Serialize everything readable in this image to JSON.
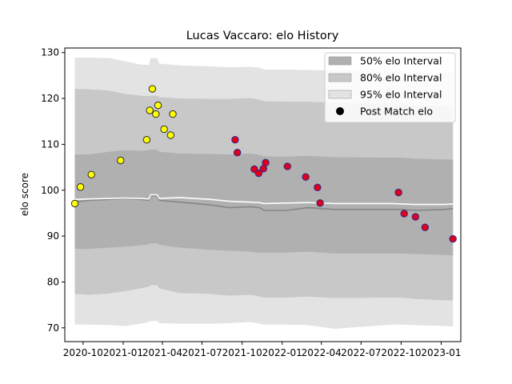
{
  "chart_data": {
    "type": "scatter",
    "title": "Lucas Vaccaro: elo History",
    "ylabel": "elo score",
    "xlabel": "",
    "ylim": [
      67,
      131
    ],
    "xlim": [
      "2020-08-20",
      "2023-02-15"
    ],
    "yticks": [
      70,
      80,
      90,
      100,
      110,
      120,
      130
    ],
    "xticks": [
      {
        "date": "2020-10-01",
        "label": "2020-10"
      },
      {
        "date": "2021-01-01",
        "label": "2021-01"
      },
      {
        "date": "2021-04-01",
        "label": "2021-04"
      },
      {
        "date": "2021-07-01",
        "label": "2021-07"
      },
      {
        "date": "2021-10-01",
        "label": "2021-10"
      },
      {
        "date": "2022-01-01",
        "label": "2022-01"
      },
      {
        "date": "2022-04-01",
        "label": "2022-04"
      },
      {
        "date": "2022-07-01",
        "label": "2022-07"
      },
      {
        "date": "2022-10-01",
        "label": "2022-10"
      },
      {
        "date": "2023-01-01",
        "label": "2023-01"
      }
    ],
    "legend": {
      "placement": "top-right",
      "items": [
        {
          "label": "50% elo Interval",
          "color": "#b0b0b0",
          "kind": "patch"
        },
        {
          "label": "80% elo Interval",
          "color": "#c8c8c8",
          "kind": "patch"
        },
        {
          "label": "95% elo Interval",
          "color": "#e3e3e3",
          "kind": "patch"
        },
        {
          "label": "Post Match elo",
          "color": "#000000",
          "kind": "marker"
        }
      ]
    },
    "band_dates": [
      "2020-09-12",
      "2020-10-15",
      "2020-12-01",
      "2021-01-05",
      "2021-02-10",
      "2021-03-01",
      "2021-03-05",
      "2021-03-20",
      "2021-03-25",
      "2021-05-10",
      "2021-07-20",
      "2021-09-01",
      "2021-10-20",
      "2021-11-10",
      "2021-11-20",
      "2022-01-10",
      "2022-03-01",
      "2022-05-01",
      "2022-09-10",
      "2022-10-01",
      "2022-11-01",
      "2023-01-10",
      "2023-01-28"
    ],
    "mean": [
      97.4,
      97.8,
      98.0,
      98.2,
      98.0,
      97.8,
      98.8,
      98.8,
      97.8,
      97.4,
      96.8,
      96.2,
      96.4,
      96.2,
      95.6,
      95.6,
      96.2,
      95.8,
      95.8,
      95.8,
      95.6,
      95.8,
      96.0
    ],
    "mean_upper": [
      98.0,
      98.1,
      98.2,
      98.3,
      98.2,
      98.1,
      99.0,
      99.0,
      98.2,
      98.4,
      98.0,
      97.6,
      97.4,
      97.3,
      97.1,
      97.2,
      97.3,
      97.1,
      97.1,
      97.0,
      96.9,
      96.9,
      97.0
    ],
    "band50": {
      "low": [
        87.2,
        87.2,
        87.5,
        87.7,
        88.0,
        88.2,
        88.4,
        88.4,
        88.1,
        87.5,
        87.0,
        86.8,
        86.6,
        86.4,
        86.4,
        86.4,
        86.6,
        86.2,
        86.2,
        86.2,
        86.1,
        85.9,
        85.8
      ],
      "high": [
        107.8,
        107.8,
        108.4,
        108.7,
        108.6,
        108.7,
        108.9,
        108.9,
        108.4,
        108.0,
        107.9,
        107.8,
        108.0,
        107.7,
        107.4,
        107.3,
        107.5,
        107.2,
        107.1,
        107.1,
        106.9,
        106.7,
        106.7
      ]
    },
    "band80": {
      "low": [
        77.4,
        77.2,
        77.5,
        78.0,
        78.6,
        79.0,
        79.3,
        79.3,
        78.6,
        77.6,
        77.4,
        77.0,
        77.2,
        76.8,
        76.6,
        76.6,
        76.8,
        76.5,
        76.6,
        76.6,
        76.3,
        76.0,
        76.0
      ],
      "high": [
        122.1,
        122.0,
        121.7,
        121.0,
        120.6,
        120.5,
        120.6,
        120.6,
        120.3,
        120.0,
        119.9,
        119.9,
        120.1,
        119.7,
        119.4,
        119.3,
        119.3,
        119.1,
        118.9,
        118.8,
        118.5,
        118.4,
        118.4
      ]
    },
    "band95": {
      "low": [
        70.7,
        70.7,
        70.6,
        70.4,
        70.9,
        71.3,
        71.5,
        71.5,
        71.0,
        70.9,
        70.9,
        71.0,
        71.3,
        70.9,
        70.7,
        70.7,
        70.6,
        69.8,
        70.7,
        70.7,
        70.6,
        70.4,
        70.3
      ],
      "high": [
        128.9,
        128.9,
        128.8,
        128.1,
        127.4,
        127.3,
        128.8,
        128.8,
        127.6,
        127.2,
        127.0,
        126.8,
        126.9,
        126.7,
        126.3,
        126.3,
        126.2,
        126.1,
        126.1,
        125.8,
        125.5,
        125.5,
        125.6
      ]
    },
    "series": [
      {
        "color": "#ffff00",
        "points": [
          {
            "x": "2020-09-12",
            "y": 97.1
          },
          {
            "x": "2020-09-25",
            "y": 100.7
          },
          {
            "x": "2020-10-20",
            "y": 103.4
          },
          {
            "x": "2020-12-26",
            "y": 106.5
          },
          {
            "x": "2021-02-24",
            "y": 111.0
          },
          {
            "x": "2021-03-03",
            "y": 117.4
          },
          {
            "x": "2021-03-09",
            "y": 122.1
          },
          {
            "x": "2021-03-17",
            "y": 116.6
          },
          {
            "x": "2021-03-22",
            "y": 118.5
          },
          {
            "x": "2021-04-05",
            "y": 113.3
          },
          {
            "x": "2021-04-20",
            "y": 112.0
          },
          {
            "x": "2021-04-25",
            "y": 116.6
          }
        ]
      },
      {
        "color": "#e0001a",
        "points": [
          {
            "x": "2021-09-15",
            "y": 111.0
          },
          {
            "x": "2021-09-20",
            "y": 108.2
          },
          {
            "x": "2021-10-29",
            "y": 104.6
          },
          {
            "x": "2021-11-08",
            "y": 103.7
          },
          {
            "x": "2021-11-19",
            "y": 104.7
          },
          {
            "x": "2021-11-24",
            "y": 106.0
          },
          {
            "x": "2022-01-13",
            "y": 105.2
          },
          {
            "x": "2022-02-24",
            "y": 102.9
          },
          {
            "x": "2022-03-23",
            "y": 100.6
          },
          {
            "x": "2022-03-29",
            "y": 97.2
          },
          {
            "x": "2022-09-25",
            "y": 99.5
          },
          {
            "x": "2022-10-08",
            "y": 94.9
          },
          {
            "x": "2022-11-03",
            "y": 94.2
          },
          {
            "x": "2022-11-25",
            "y": 91.9
          },
          {
            "x": "2023-01-28",
            "y": 89.4
          }
        ]
      }
    ]
  }
}
